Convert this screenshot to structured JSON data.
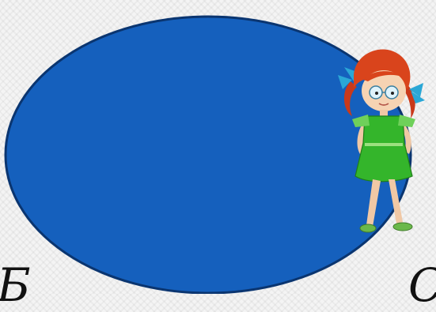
{
  "slide": {
    "background_color": "#f4f4f4",
    "oval": {
      "fill": "#1560bd",
      "stroke": "#0a3570",
      "text": ""
    },
    "girl_clipart": {
      "hair_color": "#d9441c",
      "bow_color": "#2aa7d6",
      "dress_color": "#34b52b"
    },
    "partial_text_left": "Б",
    "partial_text_right": "С"
  }
}
